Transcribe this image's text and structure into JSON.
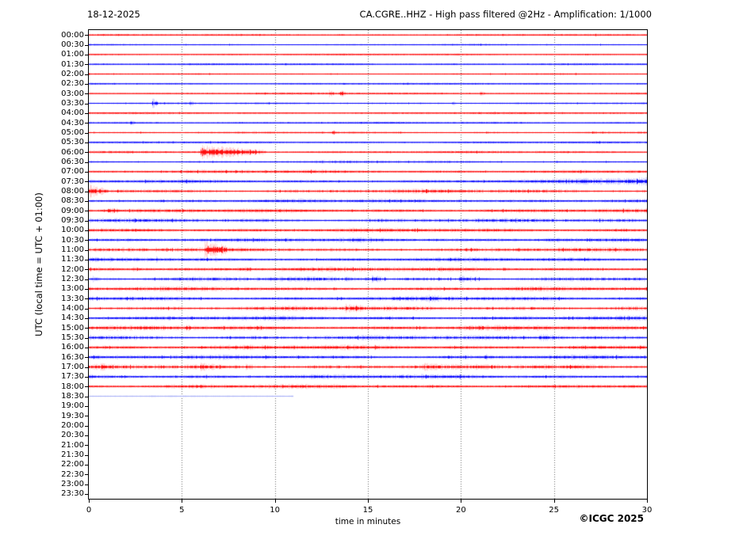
{
  "header": {
    "date_label": "18-12-2025",
    "title": "CA.CGRE..HHZ - High pass filtered @2Hz - Amplification: 1/1000"
  },
  "footer": {
    "copyright": "©ICGC 2025"
  },
  "chart_data": {
    "type": "line",
    "subtype": "helicorder-seismogram",
    "title": "CA.CGRE..HHZ - High pass filtered @2Hz - Amplification: 1/1000",
    "date": "18-12-2025",
    "xlabel": "time in minutes",
    "ylabel": "UTC (local time = UTC + 01:00)",
    "xlim": [
      0,
      30
    ],
    "xticks": [
      0,
      5,
      10,
      15,
      20,
      25,
      30
    ],
    "minutes_per_row": 30,
    "grid": "vertical dotted lines every 5 minutes",
    "legend": "none",
    "colors": {
      "red": "#ff0000",
      "blue": "#0000ff",
      "pale": "#a6aef7",
      "grid": "#666666"
    },
    "rows_note": "events are [startMinute, endMinute, halfAmplitudePx, rampFlag?]; noise is background half-amplitude in px; rows with end=0 have no data yet",
    "rows": [
      {
        "label": "00:00",
        "color": "red",
        "noise": 0.5,
        "start": 0,
        "end": 30,
        "events": []
      },
      {
        "label": "00:30",
        "color": "blue",
        "noise": 0.5,
        "start": 0,
        "end": 30,
        "events": []
      },
      {
        "label": "01:00",
        "color": "red",
        "noise": 0.5,
        "start": 0,
        "end": 30,
        "events": []
      },
      {
        "label": "01:30",
        "color": "blue",
        "noise": 0.55,
        "start": 0,
        "end": 30,
        "events": []
      },
      {
        "label": "02:00",
        "color": "red",
        "noise": 0.5,
        "start": 0,
        "end": 30,
        "events": []
      },
      {
        "label": "02:30",
        "color": "blue",
        "noise": 0.5,
        "start": 0,
        "end": 30,
        "events": []
      },
      {
        "label": "03:00",
        "color": "red",
        "noise": 0.55,
        "start": 0,
        "end": 30,
        "events": [
          [
            12.9,
            13.2,
            1.6
          ],
          [
            13.5,
            13.8,
            1.8
          ],
          [
            21.0,
            21.3,
            1.8
          ]
        ]
      },
      {
        "label": "03:30",
        "color": "blue",
        "noise": 0.55,
        "start": 0,
        "end": 30,
        "events": [
          [
            3.4,
            3.7,
            2.2
          ],
          [
            5.4,
            5.6,
            1.4
          ],
          [
            19.5,
            19.8,
            1.5
          ]
        ]
      },
      {
        "label": "04:00",
        "color": "red",
        "noise": 0.6,
        "start": 0,
        "end": 30,
        "events": []
      },
      {
        "label": "04:30",
        "color": "blue",
        "noise": 0.55,
        "start": 0,
        "end": 30,
        "events": [
          [
            2.2,
            2.5,
            1.3
          ]
        ]
      },
      {
        "label": "05:00",
        "color": "red",
        "noise": 0.6,
        "start": 0,
        "end": 30,
        "events": [
          [
            13.0,
            13.3,
            1.4
          ]
        ]
      },
      {
        "label": "05:30",
        "color": "blue",
        "noise": 0.6,
        "start": 0,
        "end": 30,
        "events": []
      },
      {
        "label": "06:00",
        "color": "red",
        "noise": 0.65,
        "start": 0,
        "end": 30,
        "events": [
          [
            6.0,
            9.5,
            3.2
          ]
        ]
      },
      {
        "label": "06:30",
        "color": "blue",
        "noise": 0.7,
        "start": 0,
        "end": 30,
        "events": []
      },
      {
        "label": "07:00",
        "color": "red",
        "noise": 0.85,
        "start": 0,
        "end": 30,
        "events": []
      },
      {
        "label": "07:30",
        "color": "blue",
        "noise": 0.9,
        "start": 0,
        "end": 30,
        "events": [
          [
            24.0,
            30.0,
            2.2,
            1
          ]
        ]
      },
      {
        "label": "08:00",
        "color": "red",
        "noise": 1.0,
        "start": 0,
        "end": 30,
        "events": [
          [
            0.0,
            1.0,
            2.6
          ]
        ]
      },
      {
        "label": "08:30",
        "color": "blue",
        "noise": 0.95,
        "start": 0,
        "end": 30,
        "events": []
      },
      {
        "label": "09:00",
        "color": "red",
        "noise": 1.0,
        "start": 0,
        "end": 30,
        "events": [
          [
            1.0,
            1.6,
            2.2
          ]
        ]
      },
      {
        "label": "09:30",
        "color": "blue",
        "noise": 1.0,
        "start": 0,
        "end": 30,
        "events": []
      },
      {
        "label": "10:00",
        "color": "red",
        "noise": 1.05,
        "start": 0,
        "end": 30,
        "events": []
      },
      {
        "label": "10:30",
        "color": "blue",
        "noise": 1.05,
        "start": 0,
        "end": 30,
        "events": [
          [
            24.5,
            26.5,
            1.6
          ]
        ]
      },
      {
        "label": "11:00",
        "color": "red",
        "noise": 1.05,
        "start": 0,
        "end": 30,
        "events": [
          [
            6.2,
            7.4,
            3.4
          ]
        ]
      },
      {
        "label": "11:30",
        "color": "blue",
        "noise": 1.0,
        "start": 0,
        "end": 30,
        "events": [
          [
            3.6,
            3.9,
            1.6
          ]
        ]
      },
      {
        "label": "12:00",
        "color": "red",
        "noise": 1.1,
        "start": 0,
        "end": 30,
        "events": [
          [
            2.3,
            2.8,
            1.8
          ],
          [
            8.0,
            9.5,
            1.5
          ]
        ]
      },
      {
        "label": "12:30",
        "color": "blue",
        "noise": 1.05,
        "start": 0,
        "end": 30,
        "events": [
          [
            0.2,
            0.5,
            2.0
          ],
          [
            15.2,
            15.9,
            2.2
          ],
          [
            19.9,
            21.8,
            1.9
          ]
        ]
      },
      {
        "label": "13:00",
        "color": "red",
        "noise": 1.05,
        "start": 0,
        "end": 30,
        "events": []
      },
      {
        "label": "13:30",
        "color": "blue",
        "noise": 1.05,
        "start": 0,
        "end": 30,
        "events": [
          [
            18.2,
            19.0,
            1.7
          ]
        ]
      },
      {
        "label": "14:00",
        "color": "red",
        "noise": 1.1,
        "start": 0,
        "end": 30,
        "events": [
          [
            13.8,
            14.9,
            2.2
          ]
        ]
      },
      {
        "label": "14:30",
        "color": "blue",
        "noise": 1.05,
        "start": 0,
        "end": 30,
        "events": []
      },
      {
        "label": "15:00",
        "color": "red",
        "noise": 1.15,
        "start": 0,
        "end": 30,
        "events": [
          [
            5.2,
            5.5,
            2.0
          ]
        ]
      },
      {
        "label": "15:30",
        "color": "blue",
        "noise": 1.1,
        "start": 0,
        "end": 30,
        "events": [
          [
            24.2,
            25.7,
            2.3
          ]
        ]
      },
      {
        "label": "16:00",
        "color": "red",
        "noise": 1.1,
        "start": 0,
        "end": 30,
        "events": []
      },
      {
        "label": "16:30",
        "color": "blue",
        "noise": 1.05,
        "start": 0,
        "end": 30,
        "events": [
          [
            19.3,
            19.7,
            1.5
          ],
          [
            21.3,
            21.6,
            1.5
          ]
        ]
      },
      {
        "label": "17:00",
        "color": "red",
        "noise": 1.15,
        "start": 0,
        "end": 30,
        "events": [
          [
            0.6,
            0.9,
            2.0
          ],
          [
            6.0,
            7.5,
            1.7
          ],
          [
            8.4,
            9.3,
            1.8
          ],
          [
            10.3,
            11.0,
            1.7
          ],
          [
            18.0,
            19.3,
            1.7
          ]
        ]
      },
      {
        "label": "17:30",
        "color": "blue",
        "noise": 1.05,
        "start": 0,
        "end": 30,
        "events": [
          [
            6.3,
            6.6,
            1.5
          ]
        ]
      },
      {
        "label": "18:00",
        "color": "red",
        "noise": 1.0,
        "start": 0,
        "end": 30,
        "events": []
      },
      {
        "label": "18:30",
        "color": "pale",
        "noise": 0.35,
        "start": 0,
        "end": 11.0,
        "events": []
      },
      {
        "label": "19:00",
        "color": "red",
        "noise": 0,
        "start": 0,
        "end": 0,
        "events": []
      },
      {
        "label": "19:30",
        "color": "blue",
        "noise": 0,
        "start": 0,
        "end": 0,
        "events": []
      },
      {
        "label": "20:00",
        "color": "red",
        "noise": 0,
        "start": 0,
        "end": 0,
        "events": []
      },
      {
        "label": "20:30",
        "color": "blue",
        "noise": 0,
        "start": 0,
        "end": 0,
        "events": []
      },
      {
        "label": "21:00",
        "color": "red",
        "noise": 0,
        "start": 0,
        "end": 0,
        "events": []
      },
      {
        "label": "21:30",
        "color": "blue",
        "noise": 0,
        "start": 0,
        "end": 0,
        "events": []
      },
      {
        "label": "22:00",
        "color": "red",
        "noise": 0,
        "start": 0,
        "end": 0,
        "events": []
      },
      {
        "label": "22:30",
        "color": "blue",
        "noise": 0,
        "start": 0,
        "end": 0,
        "events": []
      },
      {
        "label": "23:00",
        "color": "red",
        "noise": 0,
        "start": 0,
        "end": 0,
        "events": []
      },
      {
        "label": "23:30",
        "color": "blue",
        "noise": 0,
        "start": 0,
        "end": 0,
        "events": []
      }
    ]
  }
}
